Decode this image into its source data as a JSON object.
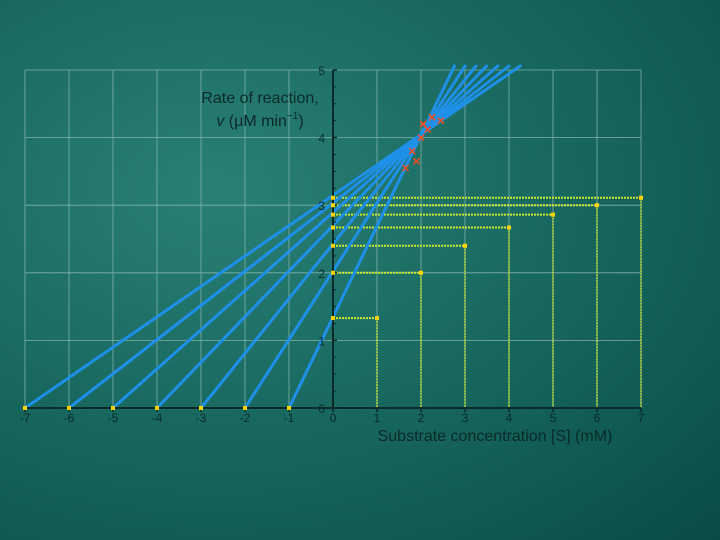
{
  "chart_data": {
    "type": "line",
    "title": "",
    "ylabel_line1": "Rate of reaction,",
    "ylabel_line2_italic": "v",
    "ylabel_line2_rest": " (μM min",
    "ylabel_line2_sup": "−1",
    "ylabel_line2_end": ")",
    "xlabel": "Substrate concentration [S] (mM)",
    "xlim": [
      -7,
      7
    ],
    "ylim": [
      0,
      5
    ],
    "x_ticks": [
      "-7",
      "-6",
      "-5",
      "-4",
      "-3",
      "-2",
      "-1",
      "0",
      "1",
      "2",
      "3",
      "4",
      "5",
      "6",
      "7"
    ],
    "y_ticks": [
      "0",
      "1",
      "2",
      "3",
      "4",
      "5"
    ],
    "grid": true,
    "intersection": {
      "x": 2,
      "y": 4
    },
    "series": [
      {
        "s": -1,
        "v": 1.33
      },
      {
        "s": 1,
        "v": 1.33
      },
      {
        "s": -2,
        "v": 2.0
      },
      {
        "s": 2,
        "v": 2.0
      },
      {
        "s": -3,
        "v": 2.4
      },
      {
        "s": 3,
        "v": 2.4
      },
      {
        "s": -4,
        "v": 2.67
      },
      {
        "s": 4,
        "v": 2.67
      },
      {
        "s": -5,
        "v": 2.86
      },
      {
        "s": 5,
        "v": 2.86
      },
      {
        "s": -6,
        "v": 3.0
      },
      {
        "s": 6,
        "v": 3.0
      },
      {
        "s": -7,
        "v": 3.11
      },
      {
        "s": 7,
        "v": 3.11
      }
    ],
    "colors": {
      "line": "#1e90e8",
      "drop": "#c8e832",
      "grid": "#7fb2ab",
      "axis": "#0b2a28",
      "marker": "#ffd400",
      "cross": "#ff4a1c"
    }
  }
}
